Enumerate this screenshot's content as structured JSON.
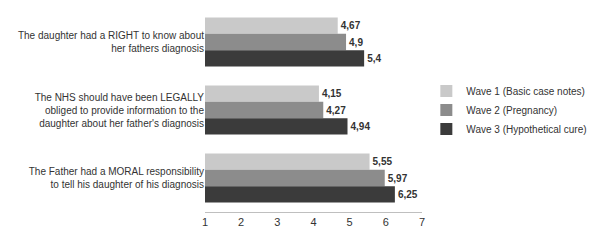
{
  "chart_data": {
    "type": "bar",
    "orientation": "horizontal",
    "categories": [
      "The daughter had a RIGHT to know about her fathers diagnosis",
      "The NHS should have been LEGALLY obliged to provide information to the daughter about her father's diagnosis",
      "The Father had a MORAL responsibility to tell his daughter of his diagnosis"
    ],
    "series": [
      {
        "name": "Wave 1 (Basic case notes)",
        "color": "#c9c9c9",
        "values": [
          4.67,
          4.15,
          5.55
        ],
        "value_labels": [
          "4,67",
          "4,15",
          "5,55"
        ]
      },
      {
        "name": "Wave 2 (Pregnancy)",
        "color": "#8c8c8c",
        "values": [
          4.9,
          4.27,
          5.97
        ],
        "value_labels": [
          "4,9",
          "4,27",
          "5,97"
        ]
      },
      {
        "name": "Wave 3 (Hypothetical cure)",
        "color": "#3b3b3b",
        "values": [
          5.4,
          4.94,
          6.25
        ],
        "value_labels": [
          "5,4",
          "4,94",
          "6,25"
        ]
      }
    ],
    "xlim": [
      1,
      7
    ],
    "xticks": [
      1,
      2,
      3,
      4,
      5,
      6,
      7
    ],
    "data_labels": true,
    "legend": "right",
    "grid": false
  }
}
